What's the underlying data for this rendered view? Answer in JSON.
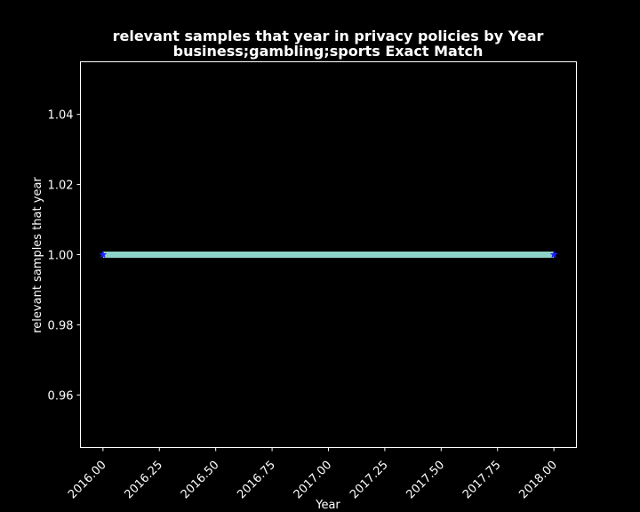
{
  "chart_data": {
    "type": "line",
    "title": "relevant samples that year in privacy policies by Year",
    "subtitle": "business;gambling;sports Exact Match",
    "xlabel": "Year",
    "ylabel": "relevant samples that year",
    "xlim": [
      2015.9,
      2018.1
    ],
    "ylim": [
      0.945,
      1.055
    ],
    "xticks": [
      2016.0,
      2016.25,
      2016.5,
      2016.75,
      2017.0,
      2017.25,
      2017.5,
      2017.75,
      2018.0
    ],
    "xtick_labels": [
      "2016.00",
      "2016.25",
      "2016.50",
      "2016.75",
      "2017.00",
      "2017.25",
      "2017.50",
      "2017.75",
      "2018.00"
    ],
    "yticks": [
      0.96,
      0.98,
      1.0,
      1.02,
      1.04
    ],
    "ytick_labels": [
      "0.96",
      "0.98",
      "1.00",
      "1.02",
      "1.04"
    ],
    "grid": false,
    "series": [
      {
        "x": [
          2016,
          2018
        ],
        "y": [
          1.0,
          1.0
        ],
        "line_color": "#8dd3c7",
        "marker": "star",
        "marker_color": "#1f1fff"
      }
    ],
    "colors": {
      "background": "#000000",
      "foreground": "#ffffff"
    }
  }
}
